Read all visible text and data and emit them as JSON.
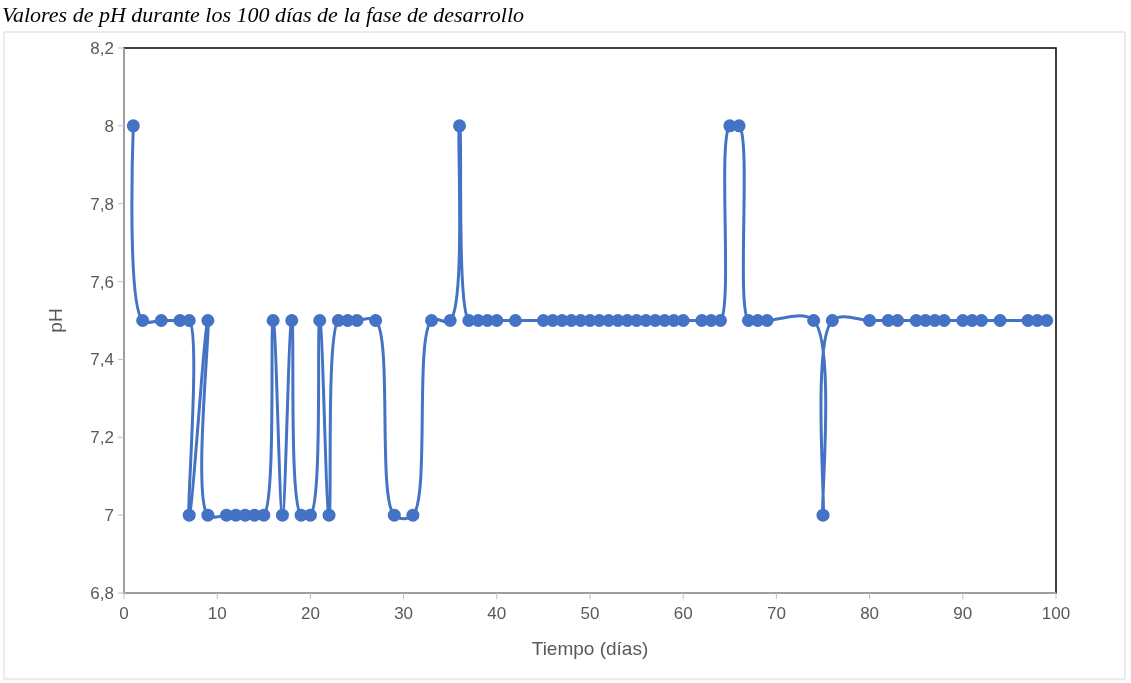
{
  "chart_data": {
    "type": "line",
    "title": "Valores de pH durante los 100 días de la fase de desarrollo",
    "xlabel": "Tiempo (días)",
    "ylabel": "pH",
    "x": [
      1,
      2,
      4,
      6,
      7,
      7,
      9,
      9,
      11,
      12,
      13,
      14,
      15,
      16,
      17,
      18,
      19,
      20,
      21,
      22,
      23,
      24,
      25,
      27,
      29,
      31,
      33,
      35,
      36,
      37,
      38,
      39,
      40,
      42,
      45,
      46,
      47,
      48,
      49,
      50,
      51,
      52,
      53,
      54,
      55,
      56,
      57,
      58,
      59,
      60,
      62,
      63,
      64,
      65,
      66,
      67,
      68,
      69,
      74,
      75,
      76,
      80,
      82,
      83,
      85,
      86,
      87,
      88,
      90,
      91,
      92,
      94,
      97,
      98,
      99
    ],
    "series": [
      {
        "color": "#4472c4",
        "values": [
          8,
          7.5,
          7.5,
          7.5,
          7.5,
          7,
          7.5,
          7,
          7,
          7,
          7,
          7,
          7,
          7.5,
          7,
          7.5,
          7,
          7,
          7.5,
          7,
          7.5,
          7.5,
          7.5,
          7.5,
          7,
          7,
          7.5,
          7.5,
          8,
          7.5,
          7.5,
          7.5,
          7.5,
          7.5,
          7.5,
          7.5,
          7.5,
          7.5,
          7.5,
          7.5,
          7.5,
          7.5,
          7.5,
          7.5,
          7.5,
          7.5,
          7.5,
          7.5,
          7.5,
          7.5,
          7.5,
          7.5,
          7.5,
          8,
          8,
          7.5,
          7.5,
          7.5,
          7.5,
          7,
          7.5,
          7.5,
          7.5,
          7.5,
          7.5,
          7.5,
          7.5,
          7.5,
          7.5,
          7.5,
          7.5,
          7.5,
          7.5,
          7.5,
          7.5
        ]
      }
    ],
    "xlim": [
      0,
      100
    ],
    "xticks": [
      0,
      10,
      20,
      30,
      40,
      50,
      60,
      70,
      80,
      90,
      100
    ],
    "ylim": [
      6.8,
      8.2
    ],
    "yticks": [
      {
        "value": 6.8,
        "label": "6,8"
      },
      7,
      {
        "value": 7.2,
        "label": "7,2"
      },
      {
        "value": 7.4,
        "label": "7,4"
      },
      {
        "value": 7.6,
        "label": "7,6"
      },
      {
        "value": 7.8,
        "label": "7,8"
      },
      8,
      {
        "value": 8.2,
        "label": "8,2"
      }
    ],
    "marker": "circle",
    "line_style": "solid"
  }
}
